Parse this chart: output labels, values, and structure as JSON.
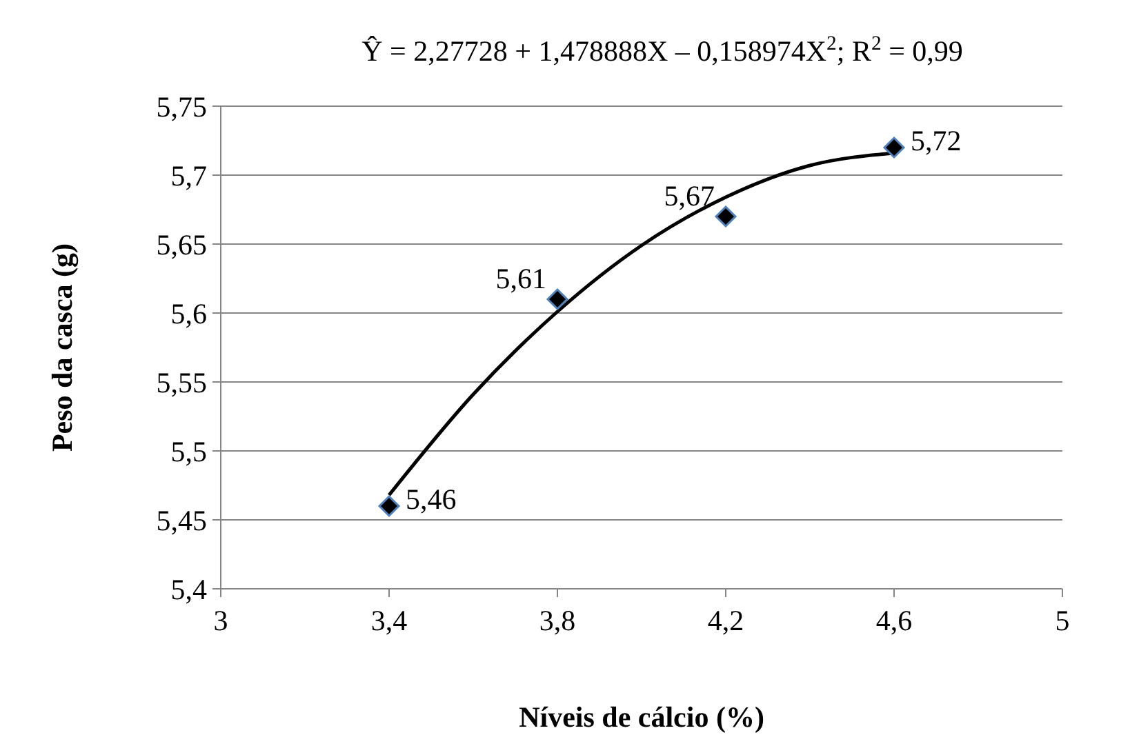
{
  "chart_data": {
    "type": "scatter",
    "title": "Ŷ = 2,27728 + 1,478888X – 0,158974X$^{2}$; R$^{2}$ = 0,99",
    "xlabel": "Níveis de cálcio (%)",
    "ylabel": "Peso da casca (g)",
    "xlim": [
      3,
      5
    ],
    "xticks": [
      3,
      {
        "value": 3.4,
        "label": "3,4"
      },
      {
        "value": 3.8,
        "label": "3,8"
      },
      {
        "value": 4.2,
        "label": "4,2"
      },
      {
        "value": 4.6,
        "label": "4,6"
      },
      5
    ],
    "ylim": [
      5.4,
      5.75
    ],
    "yticks": [
      {
        "value": 5.4,
        "label": "5,4"
      },
      {
        "value": 5.45,
        "label": "5,45"
      },
      {
        "value": 5.5,
        "label": "5,5"
      },
      {
        "value": 5.55,
        "label": "5,55"
      },
      {
        "value": 5.6,
        "label": "5,6"
      },
      {
        "value": 5.65,
        "label": "5,65"
      },
      {
        "value": 5.7,
        "label": "5,7"
      },
      {
        "value": 5.75,
        "label": "5,75"
      }
    ],
    "grid": "y",
    "marker": "diamond",
    "series": [
      {
        "type": "line",
        "color": "#000000",
        "marker": "none",
        "line_style": "solid",
        "x": [
          3.4,
          3.6,
          3.8,
          4.0,
          4.2,
          4.4,
          4.6
        ],
        "values": [
          5.468,
          5.541,
          5.601,
          5.649,
          5.684,
          5.707,
          5.716
        ]
      },
      {
        "color": "#000000",
        "x": [
          3.4,
          3.8,
          4.2,
          4.6
        ],
        "values": [
          5.46,
          5.61,
          5.67,
          5.72
        ],
        "value_labels": [
          "5,46",
          "5,61",
          "5,67",
          "5,72"
        ]
      }
    ]
  }
}
